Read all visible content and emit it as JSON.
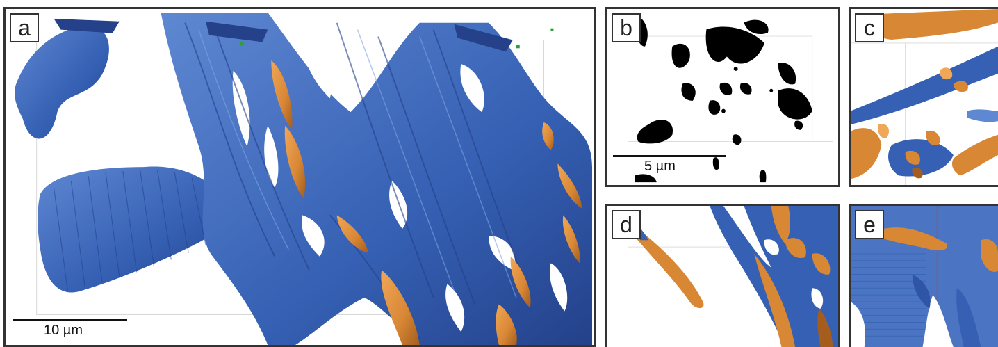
{
  "panels": {
    "a": {
      "label": "a",
      "scalebar": "10 µm"
    },
    "b": {
      "label": "b",
      "scalebar": "5 µm"
    },
    "c": {
      "label": "c"
    },
    "d": {
      "label": "d"
    },
    "e": {
      "label": "e"
    }
  },
  "colors": {
    "blue": "#3560b3",
    "blue_dark": "#24418a",
    "blue_light": "#5f88d2",
    "orange": "#d88735",
    "orange_dark": "#a45d1d",
    "black": "#000000",
    "frame": "#333333"
  }
}
